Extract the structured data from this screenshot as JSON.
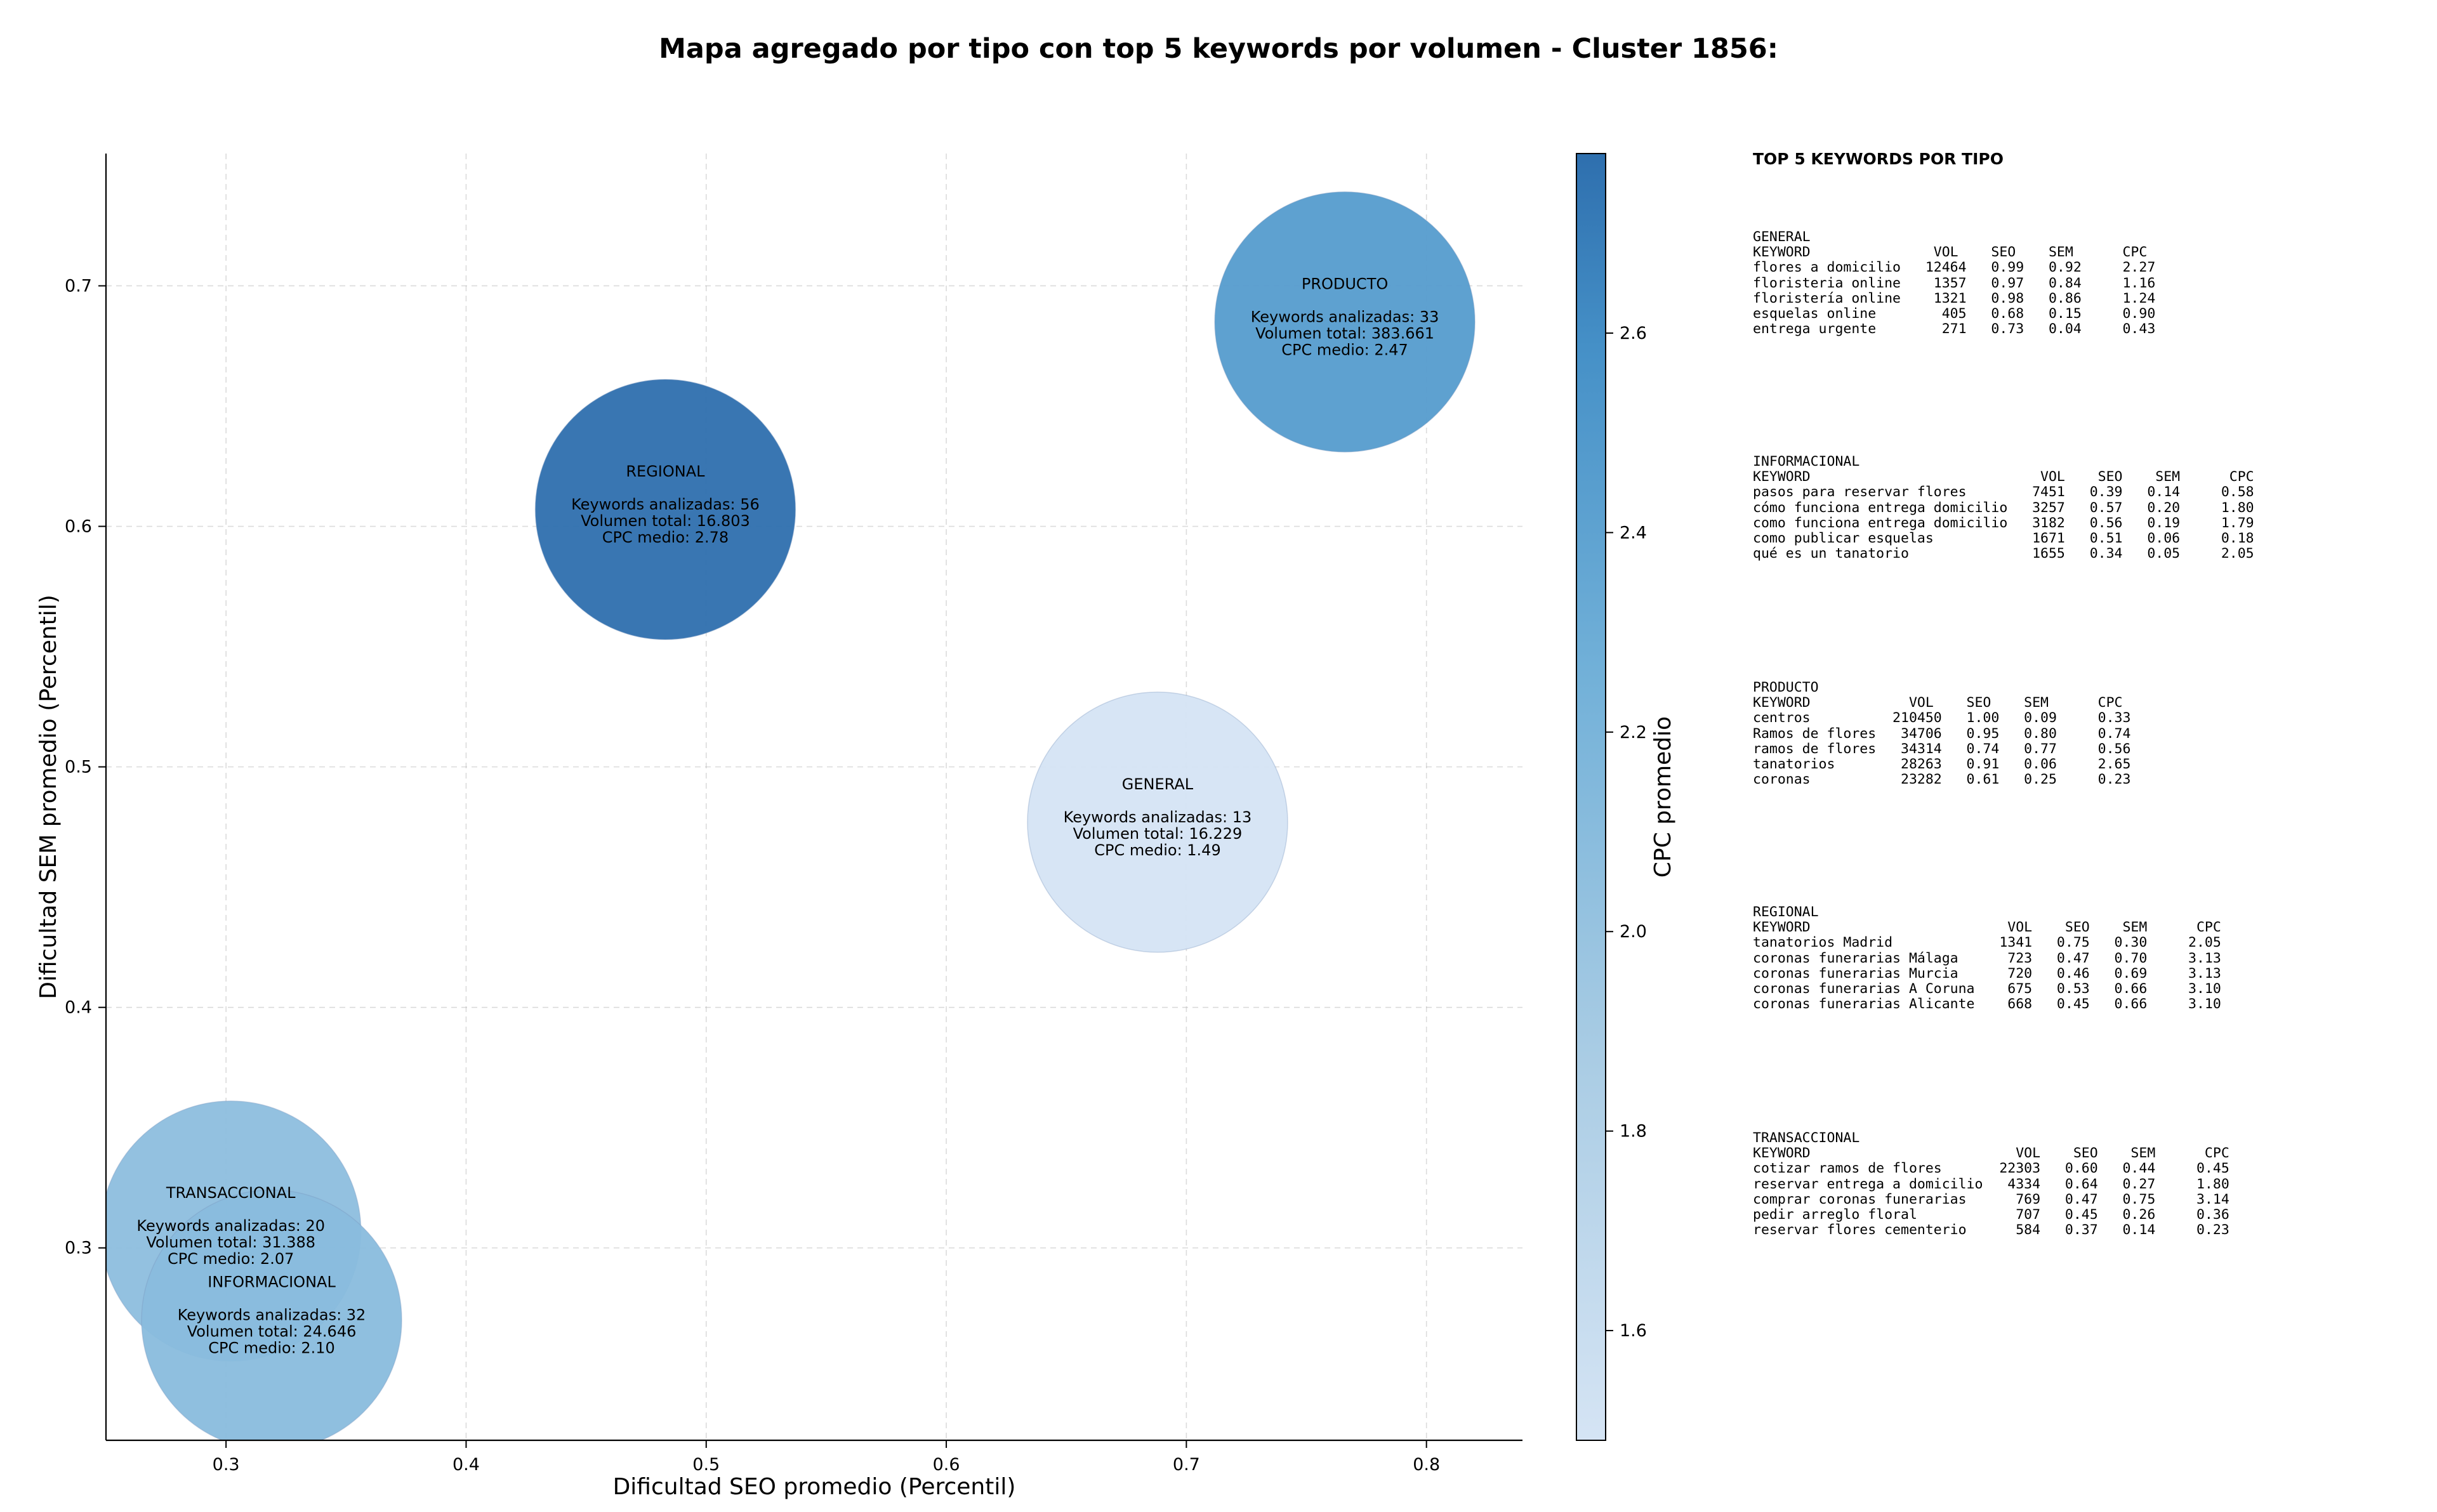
{
  "chart_data": {
    "type": "scatter",
    "title": "Mapa agregado por tipo con top 5 keywords por volumen - Cluster 1856:",
    "xlabel": "Dificultad SEO promedio (Percentil)",
    "ylabel": "Dificultad SEM promedio (Percentil)",
    "colorbar_label": "CPC promedio",
    "xlim": [
      0.25,
      0.84
    ],
    "ylim": [
      0.22,
      0.755
    ],
    "x_ticks": [
      "0.3",
      "0.4",
      "0.5",
      "0.6",
      "0.7",
      "0.8"
    ],
    "y_ticks": [
      "0.3",
      "0.4",
      "0.5",
      "0.6",
      "0.7"
    ],
    "colorbar_ticks": [
      "1.6",
      "1.8",
      "2.0",
      "2.2",
      "2.4",
      "2.6"
    ],
    "colorbar_range": [
      1.49,
      2.78
    ],
    "grid": true,
    "points": [
      {
        "label": "PRODUCTO",
        "x": 0.766,
        "y": 0.685,
        "keywords_line": "Keywords analizadas: 33",
        "volume_line": "Volumen total: 383.661",
        "cpc_line": "CPC medio: 2.47",
        "cpc": 2.47,
        "keywords": 33,
        "volume": 383661
      },
      {
        "label": "REGIONAL",
        "x": 0.483,
        "y": 0.607,
        "keywords_line": "Keywords analizadas: 56",
        "volume_line": "Volumen total: 16.803",
        "cpc_line": "CPC medio: 2.78",
        "cpc": 2.78,
        "keywords": 56,
        "volume": 16803
      },
      {
        "label": "GENERAL",
        "x": 0.688,
        "y": 0.477,
        "keywords_line": "Keywords analizadas: 13",
        "volume_line": "Volumen total: 16.229",
        "cpc_line": "CPC medio: 1.49",
        "cpc": 1.49,
        "keywords": 13,
        "volume": 16229
      },
      {
        "label": "TRANSACCIONAL",
        "x": 0.302,
        "y": 0.307,
        "keywords_line": "Keywords analizadas: 20",
        "volume_line": "Volumen total: 31.388",
        "cpc_line": "CPC medio: 2.07",
        "cpc": 2.07,
        "keywords": 20,
        "volume": 31388
      },
      {
        "label": "INFORMACIONAL",
        "x": 0.319,
        "y": 0.27,
        "keywords_line": "Keywords analizadas: 32",
        "volume_line": "Volumen total: 24.646",
        "cpc_line": "CPC medio: 2.10",
        "cpc": 2.1,
        "keywords": 32,
        "volume": 24646
      }
    ]
  },
  "side_panel": {
    "title": "TOP 5 KEYWORDS POR TIPO",
    "sections": [
      {
        "id": "general",
        "lines": [
          "GENERAL",
          "KEYWORD               VOL    SEO    SEM      CPC",
          "flores a domicilio   12464   0.99   0.92     2.27",
          "floristeria online    1357   0.97   0.84     1.16",
          "floristería online    1321   0.98   0.86     1.24",
          "esquelas online        405   0.68   0.15     0.90",
          "entrega urgente        271   0.73   0.04     0.43"
        ]
      },
      {
        "id": "informacional",
        "lines": [
          "INFORMACIONAL",
          "KEYWORD                            VOL    SEO    SEM      CPC",
          "pasos para reservar flores        7451   0.39   0.14     0.58",
          "cómo funciona entrega domicilio   3257   0.57   0.20     1.80",
          "como funciona entrega domicilio   3182   0.56   0.19     1.79",
          "como publicar esquelas            1671   0.51   0.06     0.18",
          "qué es un tanatorio               1655   0.34   0.05     2.05"
        ]
      },
      {
        "id": "producto",
        "lines": [
          "PRODUCTO",
          "KEYWORD            VOL    SEO    SEM      CPC",
          "centros          210450   1.00   0.09     0.33",
          "Ramos de flores   34706   0.95   0.80     0.74",
          "ramos de flores   34314   0.74   0.77     0.56",
          "tanatorios        28263   0.91   0.06     2.65",
          "coronas           23282   0.61   0.25     0.23"
        ]
      },
      {
        "id": "regional",
        "lines": [
          "REGIONAL",
          "KEYWORD                        VOL    SEO    SEM      CPC",
          "tanatorios Madrid             1341   0.75   0.30     2.05",
          "coronas funerarias Málaga      723   0.47   0.70     3.13",
          "coronas funerarias Murcia      720   0.46   0.69     3.13",
          "coronas funerarias A Coruna    675   0.53   0.66     3.10",
          "coronas funerarias Alicante    668   0.45   0.66     3.10"
        ]
      },
      {
        "id": "transaccional",
        "lines": [
          "TRANSACCIONAL",
          "KEYWORD                         VOL    SEO    SEM      CPC",
          "cotizar ramos de flores       22303   0.60   0.44     0.45",
          "reservar entrega a domicilio   4334   0.64   0.27     1.80",
          "comprar coronas funerarias      769   0.47   0.75     3.14",
          "pedir arreglo floral            707   0.45   0.26     0.36",
          "reservar flores cementerio      584   0.37   0.14     0.23"
        ]
      }
    ]
  }
}
